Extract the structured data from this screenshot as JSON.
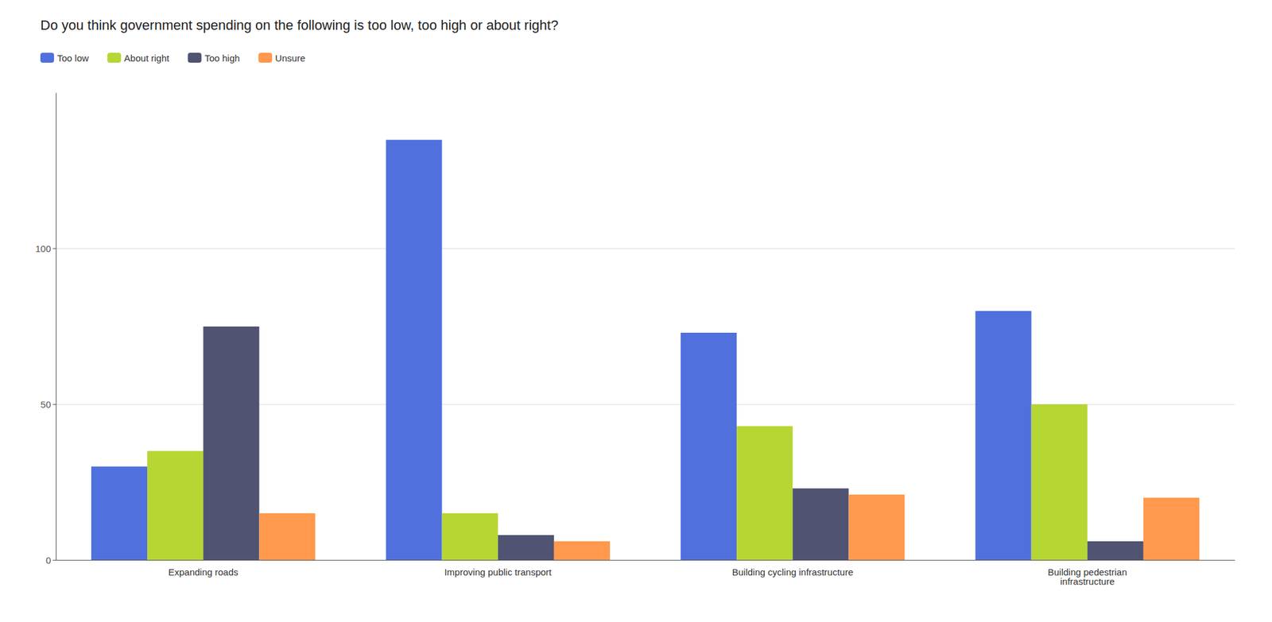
{
  "chart_data": {
    "type": "bar",
    "title": "Do you think government spending on the following is too low, too high or about right?",
    "categories": [
      "Expanding roads",
      "Improving public transport",
      "Building cycling infrastructure",
      "Building pedestrian\ninfrastructure"
    ],
    "series": [
      {
        "name": "Too low",
        "values": [
          30,
          135,
          73,
          80
        ]
      },
      {
        "name": "About right",
        "values": [
          35,
          15,
          43,
          50
        ]
      },
      {
        "name": "Too high",
        "values": [
          75,
          8,
          23,
          6
        ]
      },
      {
        "name": "Unsure",
        "values": [
          15,
          6,
          21,
          20
        ]
      }
    ],
    "ylim": [
      0,
      150
    ],
    "yticks": [
      0,
      50,
      100
    ],
    "grid": true,
    "legend": "upper left"
  }
}
